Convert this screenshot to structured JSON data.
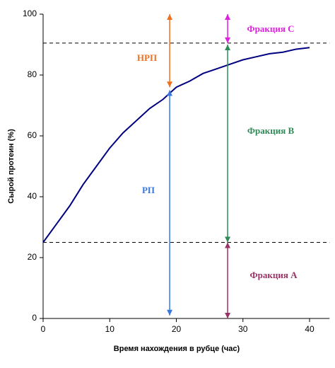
{
  "chart_data": {
    "type": "line",
    "x_label": "Время нахождения в рубце (час)",
    "y_label": "Сырой протеин (%)",
    "x": [
      0,
      2,
      4,
      6,
      8,
      10,
      12,
      14,
      16,
      18,
      20,
      22,
      24,
      26,
      28,
      30,
      32,
      34,
      36,
      38,
      40
    ],
    "values": [
      25,
      31,
      37,
      44,
      50,
      56,
      61,
      65,
      69,
      72,
      76,
      78,
      80.5,
      82,
      83.5,
      85,
      86,
      87,
      87.5,
      88.5,
      89
    ],
    "color": "#000080",
    "xlim": [
      0,
      43
    ],
    "ylim": [
      0,
      100
    ],
    "xticks": [
      0,
      10,
      20,
      30,
      40
    ],
    "yticks": [
      0,
      20,
      40,
      60,
      80,
      100
    ],
    "hlines": [
      90.5,
      25
    ],
    "annotations": [
      {
        "text": "НРП",
        "color": "#f07020",
        "x": 19,
        "y_from": 100,
        "y_to": 76
      },
      {
        "text": "РП",
        "color": "#3a78e0",
        "x": 19,
        "y_from": 1,
        "y_to": 75
      },
      {
        "text": "Фракция С",
        "color": "#e020e0",
        "x": 27.7,
        "y_from": 100,
        "y_to": 90.5
      },
      {
        "text": "Фракция В",
        "color": "#2e8b57",
        "x": 27.7,
        "y_from": 90,
        "y_to": 25
      },
      {
        "text": "Фракция А",
        "color": "#993366",
        "x": 27.7,
        "y_from": 25,
        "y_to": 0
      }
    ]
  }
}
